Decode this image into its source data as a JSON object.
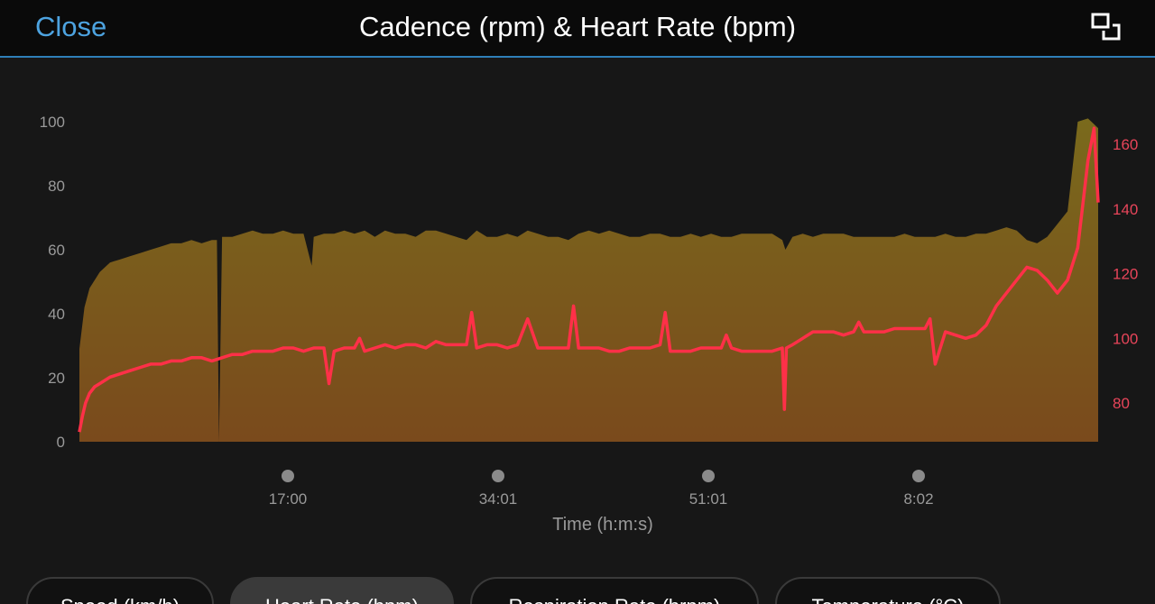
{
  "header": {
    "close_label": "Close",
    "title": "Cadence (rpm) & Heart Rate (bpm)",
    "expand_icon": "expand-icon"
  },
  "colors": {
    "cadence_fill_top": "#7a6a1c",
    "cadence_fill_bottom": "#7a4a1c",
    "heart_rate_line": "#ff3048",
    "right_axis_text": "#e8455a"
  },
  "tabs": [
    {
      "label": "Speed (km/h)",
      "active": false
    },
    {
      "label": "Heart Rate (bpm)",
      "active": true
    },
    {
      "label": "Respiration Rate (brpm)",
      "active": false
    },
    {
      "label": "Temperature (°C)",
      "active": false
    }
  ],
  "chart_data": {
    "type": "area",
    "xlabel": "Time (h:m:s)",
    "x_tick_labels": [
      "17:00",
      "34:01",
      "51:01",
      "8:02"
    ],
    "y_left": {
      "ticks": [
        "0",
        "20",
        "40",
        "60",
        "80",
        "100"
      ],
      "range": [
        0,
        100
      ]
    },
    "y_right": {
      "ticks": [
        "80",
        "100",
        "120",
        "140",
        "160"
      ],
      "range": [
        68,
        167
      ]
    },
    "series": [
      {
        "axis": "left",
        "fill": "gradient",
        "x": [
          0,
          0.5,
          1,
          2,
          3,
          4,
          5,
          6,
          7,
          8,
          9,
          10,
          11,
          12,
          13,
          13.5,
          13.7,
          14,
          15,
          16,
          17,
          18,
          19,
          20,
          21,
          22,
          22.8,
          23,
          24,
          25,
          26,
          27,
          28,
          29,
          30,
          31,
          32,
          33,
          34,
          35,
          36,
          37,
          38,
          39,
          40,
          41,
          42,
          43,
          44,
          45,
          46,
          47,
          48,
          49,
          50,
          51,
          52,
          53,
          54,
          55,
          56,
          57,
          58,
          59,
          60,
          61,
          62,
          63,
          64,
          65,
          66,
          67,
          68,
          69,
          69.3,
          70,
          71,
          72,
          73,
          74,
          75,
          76,
          77,
          78,
          79,
          80,
          81,
          82,
          83,
          84,
          85,
          86,
          87,
          88,
          89,
          90,
          91,
          92,
          93,
          94,
          95,
          96,
          97,
          98,
          99,
          100
        ],
        "values": [
          29,
          42,
          48,
          53,
          56,
          57,
          58,
          59,
          60,
          61,
          62,
          62,
          63,
          62,
          63,
          63,
          0,
          64,
          64,
          65,
          66,
          65,
          65,
          66,
          65,
          65,
          55,
          64,
          65,
          65,
          66,
          65,
          66,
          64,
          66,
          65,
          65,
          64,
          66,
          66,
          65,
          64,
          63,
          66,
          64,
          64,
          65,
          64,
          66,
          65,
          64,
          64,
          63,
          65,
          66,
          65,
          66,
          65,
          64,
          64,
          65,
          65,
          64,
          64,
          65,
          64,
          65,
          64,
          64,
          65,
          65,
          65,
          65,
          63,
          60,
          64,
          65,
          64,
          65,
          65,
          65,
          64,
          64,
          64,
          64,
          64,
          65,
          64,
          64,
          64,
          65,
          64,
          64,
          65,
          65,
          66,
          67,
          66,
          63,
          62,
          64,
          68,
          72,
          100,
          101,
          98
        ]
      },
      {
        "axis": "right",
        "color": "#ff3048",
        "x": [
          0,
          0.3,
          0.6,
          1,
          1.5,
          2,
          3,
          4,
          5,
          6,
          7,
          8,
          9,
          10,
          11,
          12,
          13,
          14,
          15,
          16,
          17,
          18,
          19,
          20,
          21,
          22,
          23,
          24,
          24.5,
          25,
          26,
          27,
          27.5,
          28,
          29,
          30,
          31,
          32,
          33,
          34,
          35,
          36,
          37,
          38,
          38.5,
          39,
          40,
          41,
          42,
          43,
          44,
          45,
          46,
          47,
          48,
          48.5,
          49,
          50,
          51,
          52,
          53,
          54,
          55,
          56,
          57,
          57.5,
          58,
          59,
          60,
          61,
          62,
          63,
          63.5,
          64,
          65,
          66,
          67,
          68,
          69,
          69.2,
          69.4,
          70,
          71,
          72,
          73,
          74,
          75,
          76,
          76.5,
          77,
          78,
          79,
          80,
          81,
          82,
          83,
          83.5,
          84,
          85,
          86,
          87,
          88,
          89,
          90,
          91,
          92,
          93,
          94,
          95,
          96,
          97,
          98,
          99,
          99.6,
          100
        ],
        "values": [
          71,
          76,
          80,
          83,
          85,
          86,
          88,
          89,
          90,
          91,
          92,
          92,
          93,
          93,
          94,
          94,
          93,
          94,
          95,
          95,
          96,
          96,
          96,
          97,
          97,
          96,
          97,
          97,
          86,
          96,
          97,
          97,
          100,
          96,
          97,
          98,
          97,
          98,
          98,
          97,
          99,
          98,
          98,
          98,
          108,
          97,
          98,
          98,
          97,
          98,
          106,
          97,
          97,
          97,
          97,
          110,
          97,
          97,
          97,
          96,
          96,
          97,
          97,
          97,
          98,
          108,
          96,
          96,
          96,
          97,
          97,
          97,
          101,
          97,
          96,
          96,
          96,
          96,
          97,
          78,
          97,
          98,
          100,
          102,
          102,
          102,
          101,
          102,
          105,
          102,
          102,
          102,
          103,
          103,
          103,
          103,
          106,
          92,
          102,
          101,
          100,
          101,
          104,
          110,
          114,
          118,
          122,
          121,
          118,
          114,
          118,
          128,
          155,
          165,
          142
        ]
      }
    ]
  }
}
